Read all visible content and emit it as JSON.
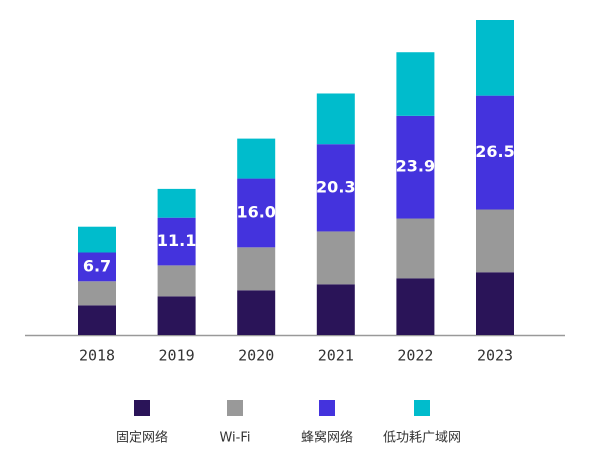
{
  "chart_data": {
    "type": "stacked-bar",
    "categories": [
      "2018",
      "2019",
      "2020",
      "2021",
      "2022",
      "2023"
    ],
    "series": [
      {
        "name": "固定网络",
        "color": "#2a1458",
        "values": [
          6.9,
          9.0,
          10.4,
          11.8,
          13.2,
          14.6
        ]
      },
      {
        "name": "Wi-Fi",
        "color": "#999999",
        "values": [
          5.6,
          7.2,
          10.0,
          12.3,
          13.9,
          14.6
        ]
      },
      {
        "name": "蜂窝网络",
        "color": "#4433dd",
        "values": [
          6.7,
          11.1,
          16.0,
          20.3,
          23.9,
          26.5
        ],
        "value_labels": [
          "6.7",
          "11.1",
          "16.0",
          "20.3",
          "23.9",
          "26.5"
        ]
      },
      {
        "name": "低功耗广域网",
        "color": "#00bccc",
        "values": [
          6.0,
          6.7,
          9.3,
          11.8,
          14.8,
          17.6
        ]
      }
    ]
  }
}
